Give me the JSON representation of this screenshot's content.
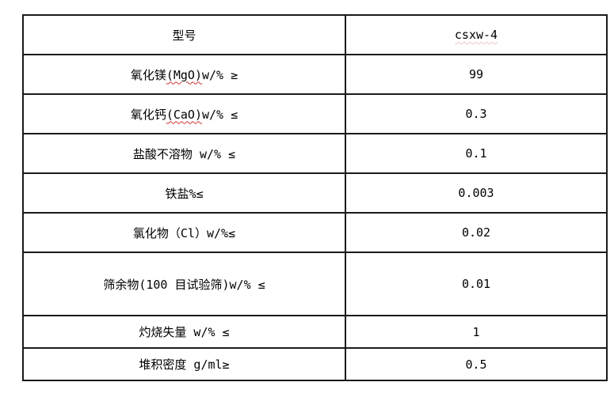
{
  "colors": {
    "border": "#1a1a1a",
    "text": "#000000",
    "spellcheck_underline": "#cc3333",
    "background": "#ffffff"
  },
  "table": {
    "rows": [
      {
        "pre": "型号",
        "mark": "",
        "post": "",
        "value": "csxw-4"
      },
      {
        "pre": "氧化镁",
        "mark": "(MgO)",
        "post": "w/% ≥",
        "value": "99"
      },
      {
        "pre": "氧化钙",
        "mark": "(CaO)",
        "post": "w/% ≤",
        "value": "0.3"
      },
      {
        "pre": "盐酸不溶物 w/% ≤",
        "mark": "",
        "post": "",
        "value": "0.1"
      },
      {
        "pre": "铁盐%≤",
        "mark": "",
        "post": "",
        "value": "0.003"
      },
      {
        "pre": "氯化物（Cl）w/%≤",
        "mark": "",
        "post": "",
        "value": "0.02"
      },
      {
        "pre": "筛余物(100 目试验筛)w/% ≤",
        "mark": "",
        "post": "",
        "value": "0.01"
      },
      {
        "pre": "灼烧失量 w/% ≤",
        "mark": "",
        "post": "",
        "value": "1"
      },
      {
        "pre": "堆积密度 g/ml≥",
        "mark": "",
        "post": "",
        "value": "0.5"
      }
    ]
  }
}
